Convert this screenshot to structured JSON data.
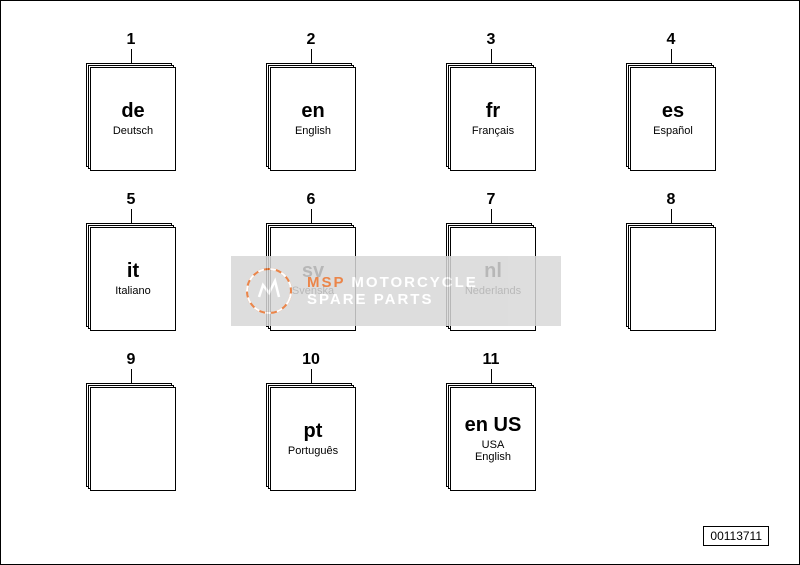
{
  "cells": [
    {
      "num": "1",
      "code": "de",
      "lang": "Deutsch",
      "hasBook": true
    },
    {
      "num": "2",
      "code": "en",
      "lang": "English",
      "hasBook": true
    },
    {
      "num": "3",
      "code": "fr",
      "lang": "Français",
      "hasBook": true
    },
    {
      "num": "4",
      "code": "es",
      "lang": "Español",
      "hasBook": true
    },
    {
      "num": "5",
      "code": "it",
      "lang": "Italiano",
      "hasBook": true
    },
    {
      "num": "6",
      "code": "sv",
      "lang": "Svenska",
      "hasBook": true
    },
    {
      "num": "7",
      "code": "nl",
      "lang": "Nederlands",
      "hasBook": true
    },
    {
      "num": "8",
      "code": "",
      "lang": "",
      "hasBook": true
    },
    {
      "num": "9",
      "code": "",
      "lang": "",
      "hasBook": true
    },
    {
      "num": "10",
      "code": "pt",
      "lang": "Português",
      "hasBook": true
    },
    {
      "num": "11",
      "code": "en US",
      "lang": "USA\nEnglish",
      "hasBook": true
    },
    {
      "num": "",
      "code": "",
      "lang": "",
      "hasBook": false
    }
  ],
  "partnum": "00113711",
  "watermark": {
    "line1_left": "MSP",
    "line1_right": "MOTORCYCLE",
    "line2_left": "",
    "line2_right": "SPARE PARTS",
    "logo_color": "#e8702a",
    "bg_color": "#d8d8d8"
  },
  "colors": {
    "page_bg": "#ffffff",
    "line": "#000000",
    "text": "#000000"
  },
  "typography": {
    "num_fontsize": 16,
    "code_fontsize": 20,
    "lang_fontsize": 11,
    "partnum_fontsize": 12
  }
}
